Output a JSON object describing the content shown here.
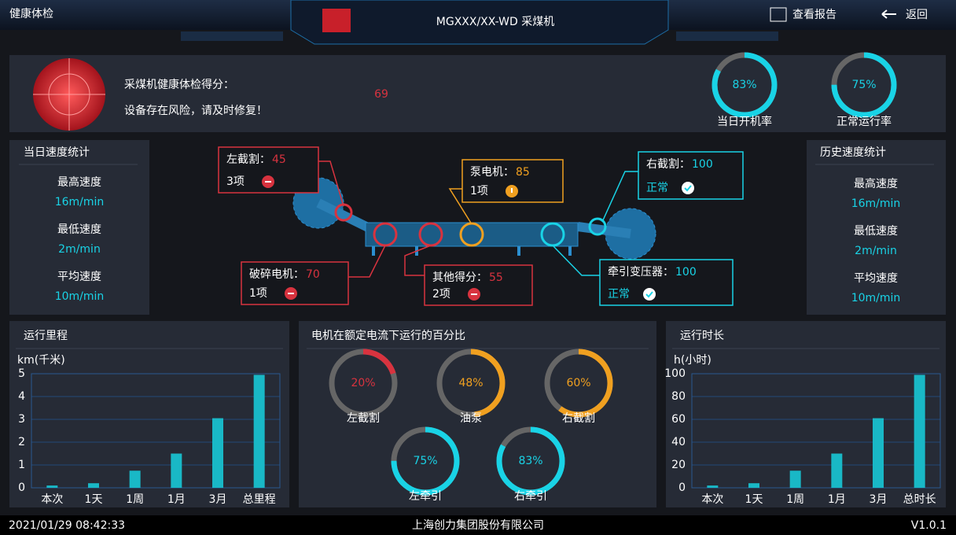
{
  "header": {
    "section": "健康体检",
    "title": "MGXXX/XX-WD 采煤机",
    "actions": [
      "查看报告",
      "返回"
    ]
  },
  "score": {
    "label": "采煤机健康体检得分：",
    "note": "设备存在风险，请及时修复！",
    "value": 69,
    "color": "#d8333f"
  },
  "rates": [
    {
      "name": "当日开机率",
      "value": 83,
      "label": "83%",
      "color": "#19d3e6"
    },
    {
      "name": "正常运行率",
      "value": 75,
      "label": "75%",
      "color": "#19d3e6"
    }
  ],
  "speed_daily": {
    "title": "当日速度统计",
    "items": [
      {
        "name": "最高速度",
        "value": "16m/min"
      },
      {
        "name": "最低速度",
        "value": "2m/min"
      },
      {
        "name": "平均速度",
        "value": "10m/min"
      }
    ]
  },
  "speed_history": {
    "title": "历史速度统计",
    "items": [
      {
        "name": "最高速度",
        "value": "16m/min"
      },
      {
        "name": "最低速度",
        "value": "2m/min"
      },
      {
        "name": "平均速度",
        "value": "10m/min"
      }
    ]
  },
  "components": [
    {
      "name": "左截割：",
      "score": 45,
      "status": "3项",
      "color": "#d8333f"
    },
    {
      "name": "泵电机：",
      "score": 85,
      "status": "1项",
      "color": "#f0a020"
    },
    {
      "name": "右截割：",
      "score": 100,
      "status": "正常",
      "color": "#19d3e6"
    },
    {
      "name": "破碎电机：",
      "score": 70,
      "status": "1项",
      "color": "#d8333f"
    },
    {
      "name": "其他得分：",
      "score": 55,
      "status": "2项",
      "color": "#d8333f"
    },
    {
      "name": "牵引变压器：",
      "score": 100,
      "status": "正常",
      "color": "#19d3e6"
    }
  ],
  "mileage": {
    "type": "bar",
    "title": "运行里程",
    "ylabel": "km(千米)",
    "categories": [
      "本次",
      "1天",
      "1周",
      "1月",
      "3月",
      "总里程"
    ],
    "values": [
      0.1,
      0.2,
      0.75,
      1.5,
      3.05,
      4.95
    ],
    "color": "#19b8c6",
    "ylim": [
      0,
      5
    ],
    "yticks": [
      0,
      1,
      2,
      3,
      4,
      5
    ],
    "grid": true
  },
  "motor": {
    "title": "电机在额定电流下运行的百分比",
    "items": [
      {
        "name": "左截割",
        "value": 20,
        "label": "20%",
        "color": "#d8333f"
      },
      {
        "name": "油泵",
        "value": 48,
        "label": "48%",
        "color": "#f0a020"
      },
      {
        "name": "右截割",
        "value": 60,
        "label": "60%",
        "color": "#f0a020"
      },
      {
        "name": "左牵引",
        "value": 75,
        "label": "75%",
        "color": "#19d3e6"
      },
      {
        "name": "右牵引",
        "value": 83,
        "label": "83%",
        "color": "#19d3e6"
      }
    ]
  },
  "duration": {
    "type": "bar",
    "title": "运行时长",
    "ylabel": "h(小时)",
    "categories": [
      "本次",
      "1天",
      "1周",
      "1月",
      "3月",
      "总时长"
    ],
    "values": [
      2,
      4,
      15,
      30,
      61,
      99
    ],
    "color": "#19b8c6",
    "ylim": [
      0,
      100
    ],
    "yticks": [
      0,
      20,
      40,
      60,
      80,
      100
    ],
    "grid": true
  },
  "footer": {
    "datetime": "2021/01/29 08:42:33",
    "company": "上海创力集团股份有限公司",
    "version": "V1.0.1"
  }
}
